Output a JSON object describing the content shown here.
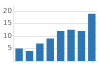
{
  "chart_data": {
    "type": "bar",
    "categories": [
      null,
      null,
      null,
      null,
      null,
      null,
      null,
      null
    ],
    "values": [
      5,
      4,
      7,
      9,
      12,
      12.5,
      12,
      19
    ],
    "color": "#2e75b6",
    "ylim": [
      0,
      22
    ],
    "yticks": [
      5,
      10,
      15,
      20
    ],
    "grid": true,
    "tick_labels": "y"
  }
}
